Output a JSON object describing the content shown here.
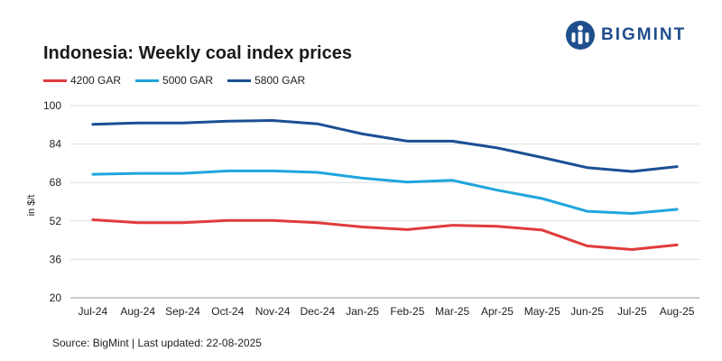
{
  "brand": {
    "name": "BIGMINT",
    "logo_icon": "bigmint-logo-icon",
    "color": "#1f4e8c"
  },
  "title": "Indonesia: Weekly coal index prices",
  "footer": "Source: BigMint | Last updated: 22-08-2025",
  "chart_data": {
    "type": "line",
    "title": "Indonesia: Weekly coal index prices",
    "xlabel": "",
    "ylabel": "in $/t",
    "ylim": [
      20,
      100
    ],
    "yticks": [
      20,
      36,
      52,
      68,
      84,
      100
    ],
    "grid": true,
    "legend": "top-left",
    "categories": [
      "Jul-24",
      "Aug-24",
      "Sep-24",
      "Oct-24",
      "Nov-24",
      "Dec-24",
      "Jan-25",
      "Feb-25",
      "Mar-25",
      "Apr-25",
      "May-25",
      "Jun-25",
      "Jul-25",
      "Aug-25"
    ],
    "series": [
      {
        "name": "4200 GAR",
        "color": "#e03b3b",
        "values": [
          52.5,
          51.3,
          51.3,
          52.2,
          52.2,
          51.3,
          49.5,
          48.4,
          50.2,
          49.8,
          48.2,
          41.6,
          40.1,
          42.0
        ]
      },
      {
        "name": "5000 GAR",
        "color": "#1fa5dc",
        "values": [
          71.4,
          71.8,
          71.8,
          72.8,
          72.8,
          72.2,
          69.8,
          68.2,
          68.9,
          64.8,
          61.3,
          56.0,
          55.1,
          56.8
        ]
      },
      {
        "name": "5800 GAR",
        "color": "#1b4f93",
        "values": [
          92.2,
          92.8,
          92.8,
          93.5,
          93.8,
          92.4,
          88.2,
          85.2,
          85.2,
          82.4,
          78.4,
          74.2,
          72.6,
          74.6
        ]
      }
    ]
  }
}
